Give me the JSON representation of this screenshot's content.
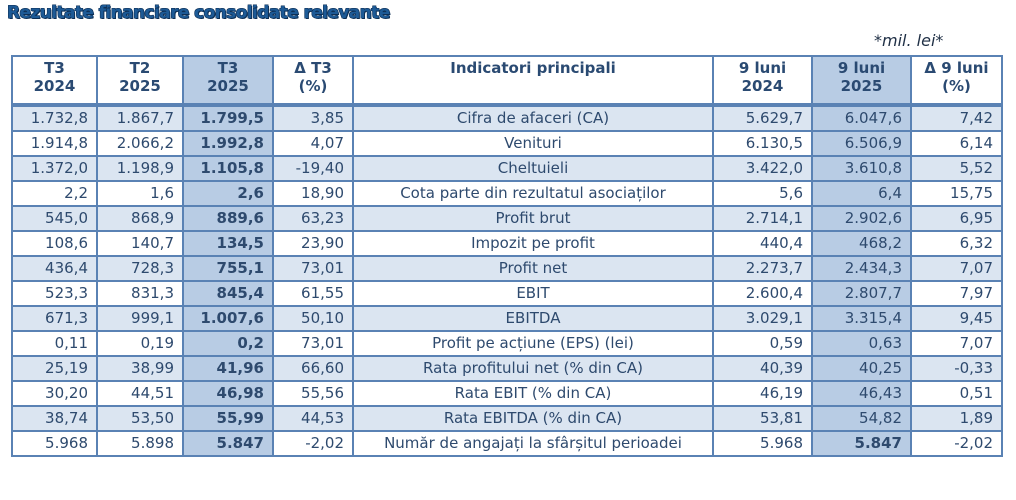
{
  "title": "Rezultate financiare consolidate relevante",
  "unit_note": "*mil. lei*",
  "colors": {
    "title": "#1d5a96",
    "border": "#5a82b4",
    "row_shade": "#dbe5f1",
    "highlight_column": "#b8cce4",
    "text": "#2e4a6e"
  },
  "table": {
    "headers": [
      {
        "line1": "T3",
        "line2": "2024"
      },
      {
        "line1": "T2",
        "line2": "2025"
      },
      {
        "line1": "T3",
        "line2": "2025"
      },
      {
        "line1": "Δ T3",
        "line2": "(%)"
      },
      {
        "line1": "Indicatori principali",
        "line2": ""
      },
      {
        "line1": "9 luni",
        "line2": "2024"
      },
      {
        "line1": "9 luni",
        "line2": "2025"
      },
      {
        "line1": "Δ 9 luni",
        "line2": "(%)"
      }
    ],
    "rows": [
      {
        "t3_2024": "1.732,8",
        "t2_2025": "1.867,7",
        "t3_2025": "1.799,5",
        "d_t3": "3,85",
        "indicator": "Cifra de afaceri (CA)",
        "m9_2024": "5.629,7",
        "m9_2025": "6.047,6",
        "d_9m": "7,42"
      },
      {
        "t3_2024": "1.914,8",
        "t2_2025": "2.066,2",
        "t3_2025": "1.992,8",
        "d_t3": "4,07",
        "indicator": "Venituri",
        "m9_2024": "6.130,5",
        "m9_2025": "6.506,9",
        "d_9m": "6,14"
      },
      {
        "t3_2024": "1.372,0",
        "t2_2025": "1.198,9",
        "t3_2025": "1.105,8",
        "d_t3": "-19,40",
        "indicator": "Cheltuieli",
        "m9_2024": "3.422,0",
        "m9_2025": "3.610,8",
        "d_9m": "5,52"
      },
      {
        "t3_2024": "2,2",
        "t2_2025": "1,6",
        "t3_2025": "2,6",
        "d_t3": "18,90",
        "indicator": "Cota parte din rezultatul asociaților",
        "m9_2024": "5,6",
        "m9_2025": "6,4",
        "d_9m": "15,75"
      },
      {
        "t3_2024": "545,0",
        "t2_2025": "868,9",
        "t3_2025": "889,6",
        "d_t3": "63,23",
        "indicator": "Profit brut",
        "m9_2024": "2.714,1",
        "m9_2025": "2.902,6",
        "d_9m": "6,95"
      },
      {
        "t3_2024": "108,6",
        "t2_2025": "140,7",
        "t3_2025": "134,5",
        "d_t3": "23,90",
        "indicator": "Impozit pe profit",
        "m9_2024": "440,4",
        "m9_2025": "468,2",
        "d_9m": "6,32"
      },
      {
        "t3_2024": "436,4",
        "t2_2025": "728,3",
        "t3_2025": "755,1",
        "d_t3": "73,01",
        "indicator": "Profit net",
        "m9_2024": "2.273,7",
        "m9_2025": "2.434,3",
        "d_9m": "7,07"
      },
      {
        "t3_2024": "523,3",
        "t2_2025": "831,3",
        "t3_2025": "845,4",
        "d_t3": "61,55",
        "indicator": "EBIT",
        "m9_2024": "2.600,4",
        "m9_2025": "2.807,7",
        "d_9m": "7,97"
      },
      {
        "t3_2024": "671,3",
        "t2_2025": "999,1",
        "t3_2025": "1.007,6",
        "d_t3": "50,10",
        "indicator": "EBITDA",
        "m9_2024": "3.029,1",
        "m9_2025": "3.315,4",
        "d_9m": "9,45"
      },
      {
        "t3_2024": "0,11",
        "t2_2025": "0,19",
        "t3_2025": "0,2",
        "d_t3": "73,01",
        "indicator": "Profit pe acțiune (EPS) (lei)",
        "m9_2024": "0,59",
        "m9_2025": "0,63",
        "d_9m": "7,07"
      },
      {
        "t3_2024": "25,19",
        "t2_2025": "38,99",
        "t3_2025": "41,96",
        "d_t3": "66,60",
        "indicator": "Rata profitului net (% din CA)",
        "m9_2024": "40,39",
        "m9_2025": "40,25",
        "d_9m": "-0,33"
      },
      {
        "t3_2024": "30,20",
        "t2_2025": "44,51",
        "t3_2025": "46,98",
        "d_t3": "55,56",
        "indicator": "Rata EBIT (% din CA)",
        "m9_2024": "46,19",
        "m9_2025": "46,43",
        "d_9m": "0,51"
      },
      {
        "t3_2024": "38,74",
        "t2_2025": "53,50",
        "t3_2025": "55,99",
        "d_t3": "44,53",
        "indicator": "Rata EBITDA (% din CA)",
        "m9_2024": "53,81",
        "m9_2025": "54,82",
        "d_9m": "1,89"
      },
      {
        "t3_2024": "5.968",
        "t2_2025": "5.898",
        "t3_2025": "5.847",
        "d_t3": "-2,02",
        "indicator": "Număr de angajați la sfârșitul perioadei",
        "m9_2024": "5.968",
        "m9_2025": "5.847",
        "d_9m": "-2,02"
      }
    ]
  }
}
